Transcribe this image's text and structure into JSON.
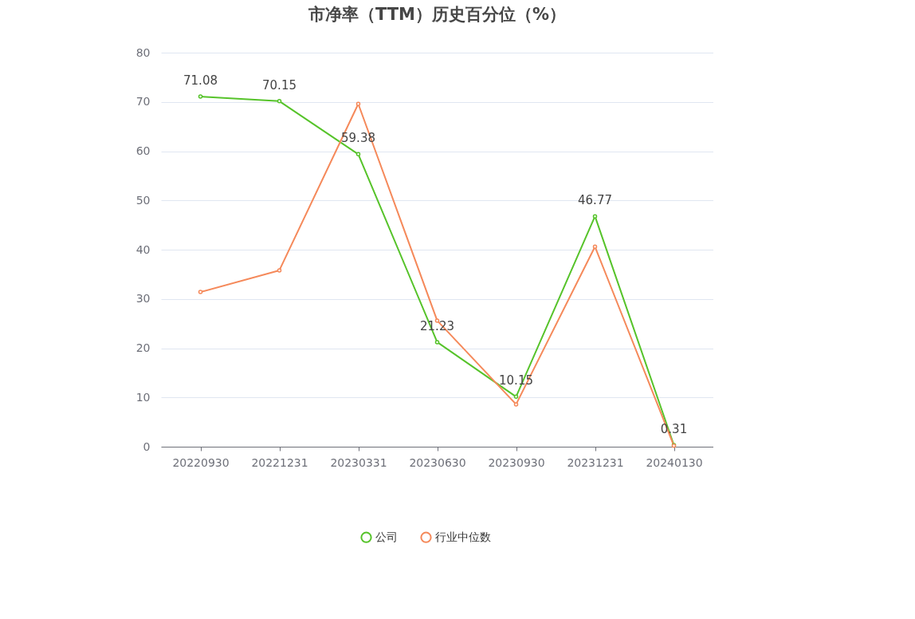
{
  "chart_data": {
    "type": "line",
    "title": "市净率（TTM）历史百分位（%）",
    "categories": [
      "20220930",
      "20221231",
      "20230331",
      "20230630",
      "20230930",
      "20231231",
      "20240130"
    ],
    "series": [
      {
        "name": "公司",
        "color": "#56c32a",
        "values": [
          71.08,
          70.15,
          59.38,
          21.23,
          10.15,
          46.77,
          0.31
        ],
        "value_labels": [
          "71.08",
          "70.15",
          "59.38",
          "21.23",
          "10.15",
          "46.77",
          "0.31"
        ]
      },
      {
        "name": "行业中位数",
        "color": "#f5895a",
        "values": [
          31.4,
          35.8,
          69.6,
          25.6,
          8.6,
          40.6,
          0.2
        ]
      }
    ],
    "ylim": [
      0,
      80
    ],
    "yticks": [
      0,
      10,
      20,
      30,
      40,
      50,
      60,
      70,
      80
    ],
    "grid": "y",
    "legend": "bottom",
    "marker": "circle",
    "line_style": "solid"
  }
}
